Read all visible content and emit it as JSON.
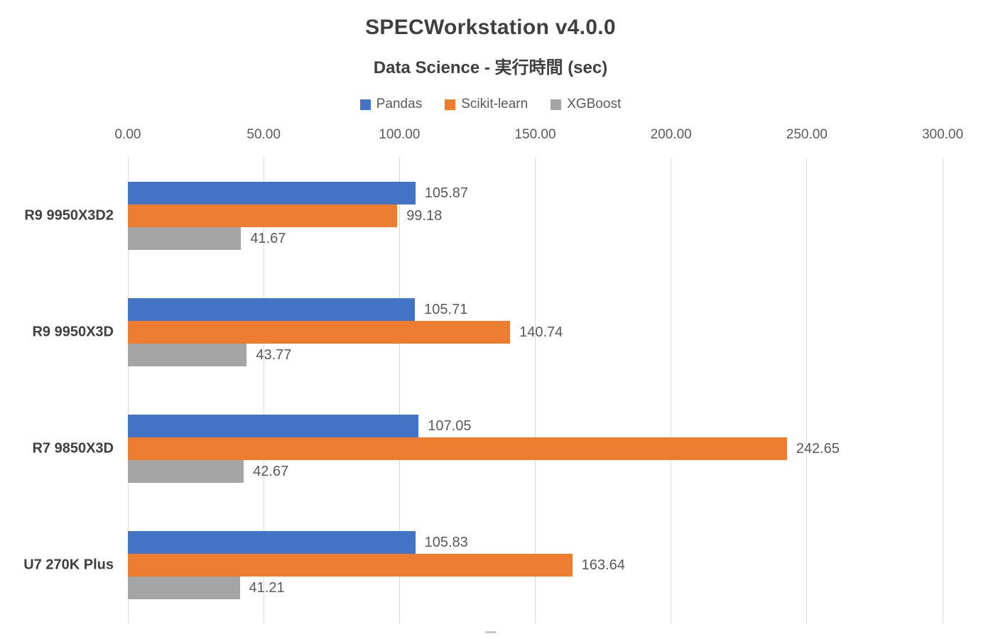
{
  "chart_data": {
    "type": "bar",
    "orientation": "horizontal",
    "title": "SPECWorkstation v4.0.0",
    "subtitle": "Data Science - 実行時間 (sec)",
    "legend_position": "top",
    "grid": "vertical",
    "xlim": [
      0,
      300
    ],
    "xticks": {
      "values": [
        0,
        50,
        100,
        150,
        200,
        250,
        300
      ],
      "labels": [
        "0.00",
        "50.00",
        "100.00",
        "150.00",
        "200.00",
        "250.00",
        "300.00"
      ]
    },
    "categories": [
      "R9 9950X3D2",
      "R9 9950X3D",
      "R7 9850X3D",
      "U7 270K Plus"
    ],
    "series": [
      {
        "name": "Pandas",
        "color": "#4472C4",
        "values": [
          105.87,
          105.71,
          107.05,
          105.83
        ],
        "labels": [
          "105.87",
          "105.71",
          "107.05",
          "105.83"
        ]
      },
      {
        "name": "Scikit-learn",
        "color": "#ED7D31",
        "values": [
          99.18,
          140.74,
          242.65,
          163.64
        ],
        "labels": [
          "99.18",
          "140.74",
          "242.65",
          "163.64"
        ]
      },
      {
        "name": "XGBoost",
        "color": "#A5A5A5",
        "values": [
          41.67,
          43.77,
          42.67,
          41.21
        ],
        "labels": [
          "41.67",
          "43.77",
          "42.67",
          "41.21"
        ]
      }
    ],
    "colors": {
      "gridline": "#D9D9D9",
      "text": "#595959",
      "title_text": "#3F3F3F",
      "background": "#FFFFFF"
    }
  }
}
